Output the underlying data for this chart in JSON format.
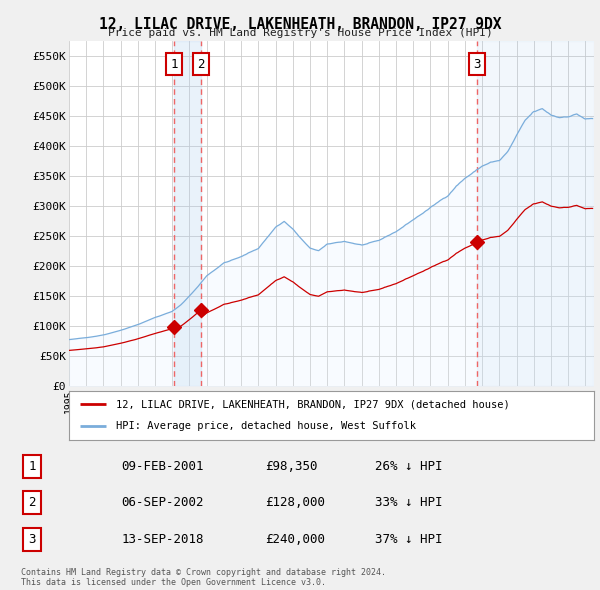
{
  "title": "12, LILAC DRIVE, LAKENHEATH, BRANDON, IP27 9DX",
  "subtitle": "Price paid vs. HM Land Registry's House Price Index (HPI)",
  "ylim": [
    0,
    575000
  ],
  "yticks": [
    0,
    50000,
    100000,
    150000,
    200000,
    250000,
    300000,
    350000,
    400000,
    450000,
    500000,
    550000
  ],
  "ytick_labels": [
    "£0",
    "£50K",
    "£100K",
    "£150K",
    "£200K",
    "£250K",
    "£300K",
    "£350K",
    "£400K",
    "£450K",
    "£500K",
    "£550K"
  ],
  "bg_color": "#f0f0f0",
  "plot_bg_color": "#ffffff",
  "grid_color": "#cccccc",
  "hpi_color": "#7aaddb",
  "hpi_fill_color": "#ddeeff",
  "price_color": "#cc0000",
  "vline_color": "#ee6666",
  "legend_label_price": "12, LILAC DRIVE, LAKENHEATH, BRANDON, IP27 9DX (detached house)",
  "legend_label_hpi": "HPI: Average price, detached house, West Suffolk",
  "t1_x": 2001.12,
  "t2_x": 2002.68,
  "t3_x": 2018.7,
  "t1_price": 98350,
  "t2_price": 128000,
  "t3_price": 240000,
  "table_rows": [
    [
      "1",
      "09-FEB-2001",
      "£98,350",
      "26% ↓ HPI"
    ],
    [
      "2",
      "06-SEP-2002",
      "£128,000",
      "33% ↓ HPI"
    ],
    [
      "3",
      "13-SEP-2018",
      "£240,000",
      "37% ↓ HPI"
    ]
  ],
  "footer": "Contains HM Land Registry data © Crown copyright and database right 2024.\nThis data is licensed under the Open Government Licence v3.0.",
  "xmin": 1995.0,
  "xmax": 2025.5
}
